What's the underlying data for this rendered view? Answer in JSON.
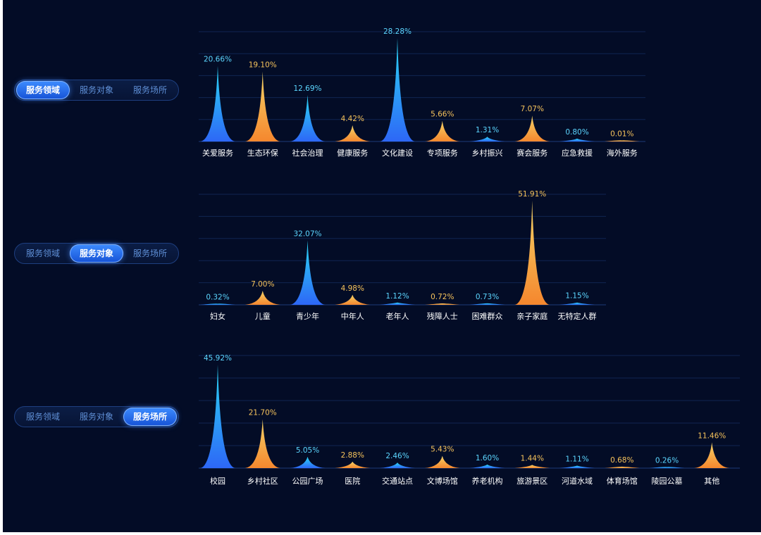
{
  "colors": {
    "blue_top": "#2ce1ff",
    "blue_bottom": "#2f6bff",
    "orange_top": "#ffdc6a",
    "orange_bottom": "#ff8c2e",
    "blue_label": "#5cd6ff",
    "orange_label": "#f6c35c",
    "grid": "#102552",
    "axis": "#1c3a78",
    "category": "#ffffff"
  },
  "tabs": [
    {
      "label": "服务领域"
    },
    {
      "label": "服务对象"
    },
    {
      "label": "服务场所"
    }
  ],
  "chart_data": [
    {
      "type": "bar",
      "title": "服务领域",
      "categories": [
        "关爱服务",
        "生态环保",
        "社会治理",
        "健康服务",
        "文化建设",
        "专项服务",
        "乡村振兴",
        "赛会服务",
        "应急救援",
        "海外服务"
      ],
      "values": [
        20.66,
        19.1,
        12.69,
        4.42,
        28.28,
        5.66,
        1.31,
        7.07,
        0.8,
        0.01
      ],
      "value_labels": [
        "20.66%",
        "19.10%",
        "12.69%",
        "4.42%",
        "28.28%",
        "5.66%",
        "1.31%",
        "7.07%",
        "0.80%",
        "0.01%"
      ],
      "ylim": [
        0,
        30
      ],
      "grid": true
    },
    {
      "type": "bar",
      "title": "服务对象",
      "categories": [
        "妇女",
        "儿童",
        "青少年",
        "中年人",
        "老年人",
        "残障人士",
        "困难群众",
        "亲子家庭",
        "无特定人群"
      ],
      "values": [
        0.32,
        7.0,
        32.07,
        4.98,
        1.12,
        0.72,
        0.73,
        51.91,
        1.15
      ],
      "value_labels": [
        "0.32%",
        "7.00%",
        "32.07%",
        "4.98%",
        "1.12%",
        "0.72%",
        "0.73%",
        "51.91%",
        "1.15%"
      ],
      "ylim": [
        0,
        55
      ],
      "grid": true
    },
    {
      "type": "bar",
      "title": "服务场所",
      "categories": [
        "校园",
        "乡村社区",
        "公园广场",
        "医院",
        "交通站点",
        "文博场馆",
        "养老机构",
        "旅游景区",
        "河道水域",
        "体育场馆",
        "陵园公墓",
        "其他"
      ],
      "values": [
        45.92,
        21.7,
        5.05,
        2.88,
        2.46,
        5.43,
        1.6,
        1.44,
        1.11,
        0.68,
        0.26,
        11.46
      ],
      "value_labels": [
        "45.92%",
        "21.70%",
        "5.05%",
        "2.88%",
        "2.46%",
        "5.43%",
        "1.60%",
        "1.44%",
        "1.11%",
        "0.68%",
        "0.26%",
        "11.46%"
      ],
      "ylim": [
        0,
        50
      ],
      "grid": true
    }
  ]
}
